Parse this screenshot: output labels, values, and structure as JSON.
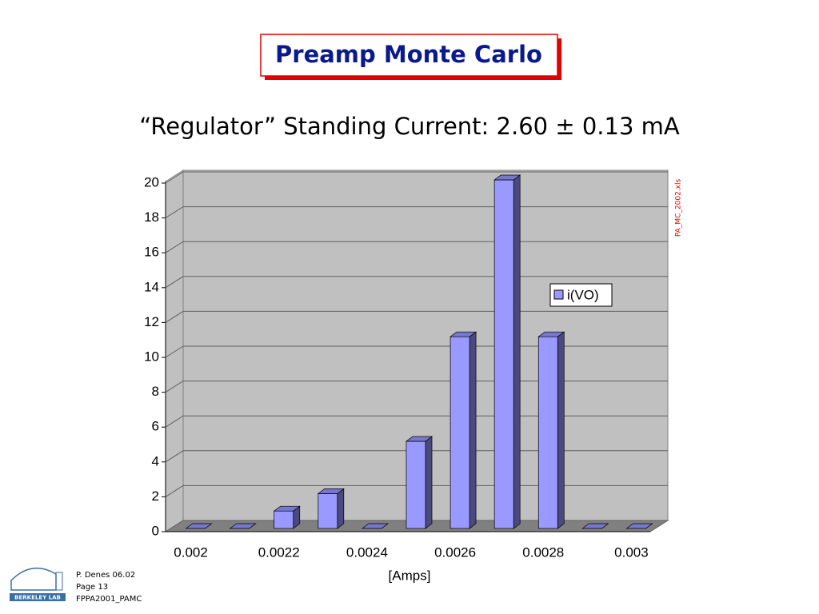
{
  "chart_data": {
    "type": "bar",
    "title": "Preamp Monte Carlo",
    "subtitle": "“Regulator” Standing Current: 2.60 ± 0.13 mA",
    "x_label": "[Amps]",
    "note": "PA_MC_2002.xls",
    "categories": [
      "0.002",
      null,
      "0.0022",
      null,
      "0.0024",
      null,
      "0.0026",
      null,
      "0.0028",
      null,
      "0.003"
    ],
    "series": [
      {
        "name": "i(VO)",
        "color": "#9999ff",
        "values": [
          0,
          0,
          1,
          2,
          0,
          5,
          11,
          20,
          11,
          0,
          0
        ]
      }
    ],
    "ylim": [
      0,
      20
    ],
    "yticks": [
      0,
      2,
      4,
      6,
      8,
      10,
      12,
      14,
      16,
      18,
      20
    ],
    "grid": true,
    "legend": "right"
  },
  "footer": {
    "author": "P. Denes 06.02",
    "page": "Page 13",
    "file": "FPPA2001_PAMC",
    "logo": "BERKELEY LAB"
  }
}
